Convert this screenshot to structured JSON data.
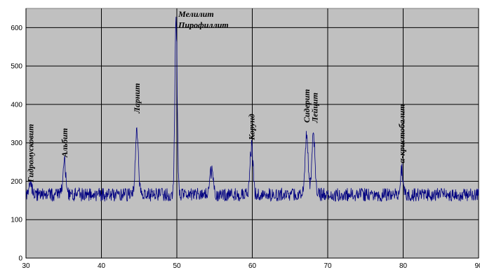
{
  "chart_data": {
    "type": "line",
    "xlim": [
      30,
      90
    ],
    "ylim": [
      0,
      650
    ],
    "x_ticks": [
      30,
      40,
      50,
      60,
      70,
      80,
      90
    ],
    "y_ticks": [
      0,
      100,
      200,
      300,
      400,
      500,
      600
    ],
    "grid": true,
    "plot_background": "#c0c0c0",
    "series": [
      {
        "color": "#000080",
        "baseline": 165,
        "noise_amplitude": 35,
        "sampling_step": 0.05,
        "peaks": [
          {
            "x": 30.6,
            "y": 195
          },
          {
            "x": 35.1,
            "y": 255
          },
          {
            "x": 44.7,
            "y": 330
          },
          {
            "x": 49.9,
            "y": 635
          },
          {
            "x": 54.6,
            "y": 230
          },
          {
            "x": 59.9,
            "y": 295
          },
          {
            "x": 67.2,
            "y": 330
          },
          {
            "x": 68.1,
            "y": 330
          },
          {
            "x": 79.8,
            "y": 230
          }
        ]
      }
    ],
    "annotations": [
      {
        "text": "Гидромусковит",
        "x": 30.6,
        "y": 190,
        "rotated": true
      },
      {
        "text": "Альбит",
        "x": 35.1,
        "y": 255,
        "rotated": true
      },
      {
        "text": "Ларнит",
        "x": 44.7,
        "y": 370,
        "rotated": true
      },
      {
        "text": "Мелилит",
        "x": 50.2,
        "y": 628,
        "rotated": false
      },
      {
        "text": "Пирофиллит",
        "x": 50.2,
        "y": 600,
        "rotated": false
      },
      {
        "text": "Корунд",
        "x": 59.9,
        "y": 300,
        "rotated": true
      },
      {
        "text": "Сидерит",
        "x": 67.2,
        "y": 345,
        "rotated": true
      },
      {
        "text": "Лейцит",
        "x": 68.3,
        "y": 345,
        "rotated": true
      },
      {
        "text": "α-кристобалит",
        "x": 79.8,
        "y": 240,
        "rotated": true
      }
    ]
  }
}
